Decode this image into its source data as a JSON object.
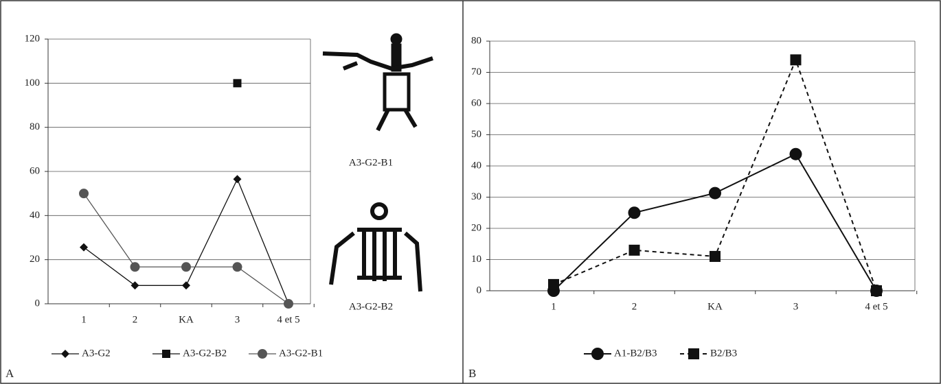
{
  "chart_data": [
    {
      "type": "line",
      "label": "A",
      "categories": [
        "1",
        "2",
        "KA",
        "3",
        "4 et 5"
      ],
      "ylim": [
        0,
        120
      ],
      "yticks": [
        0,
        20,
        40,
        60,
        80,
        100,
        120
      ],
      "grid": true,
      "legend": "bottom",
      "series": [
        {
          "name": "A3-G2",
          "color": "#111",
          "marker": "diamond",
          "dash": "solid",
          "values": [
            25.6,
            8.3,
            8.3,
            56.5,
            0
          ]
        },
        {
          "name": "A3-G2-B2",
          "color": "#111",
          "marker": "square",
          "dash": "solid",
          "values": [
            null,
            null,
            null,
            100,
            null
          ]
        },
        {
          "name": "A3-G2-B1",
          "color": "#555",
          "marker": "circle",
          "dash": "solid",
          "values": [
            50,
            16.7,
            16.7,
            16.7,
            0
          ]
        }
      ]
    },
    {
      "type": "line",
      "label": "B",
      "categories": [
        "1",
        "2",
        "KA",
        "3",
        "4 et 5"
      ],
      "ylim": [
        0,
        80
      ],
      "yticks": [
        0,
        10,
        20,
        30,
        40,
        50,
        60,
        70,
        80
      ],
      "grid": true,
      "legend": "bottom",
      "series": [
        {
          "name": "A1-B2/B3",
          "color": "#111",
          "marker": "circle",
          "dash": "solid",
          "values": [
            0,
            25,
            31.3,
            43.8,
            0
          ]
        },
        {
          "name": "B2/B3",
          "color": "#111",
          "marker": "square",
          "dash": "dashed",
          "values": [
            2,
            13,
            11,
            74,
            0
          ]
        }
      ]
    }
  ],
  "figures": [
    "A3-G2-B1",
    "A3-G2-B2"
  ]
}
